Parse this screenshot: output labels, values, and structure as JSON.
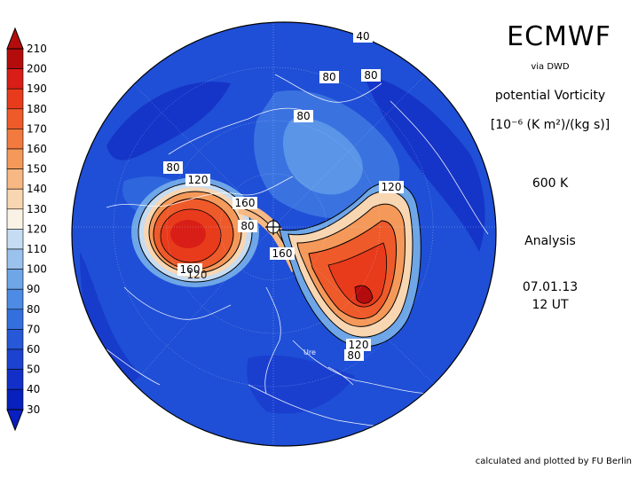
{
  "header": {
    "model": "ECMWF",
    "source": "via DWD",
    "quantity": "potential Vorticity",
    "units": "[10⁻⁶ (K m²)/(kg s)]",
    "level": "600 K",
    "type": "Analysis",
    "date": "07.01.13",
    "time": "12 UT"
  },
  "credit": "calculated and plotted by FU Berlin",
  "colorbar": {
    "levels": [
      "210",
      "200",
      "190",
      "180",
      "170",
      "160",
      "150",
      "140",
      "130",
      "120",
      "110",
      "100",
      "90",
      "80",
      "70",
      "60",
      "50",
      "40",
      "30"
    ],
    "colors": [
      "#b40c0c",
      "#d81e16",
      "#e83b1c",
      "#ee5a2a",
      "#f27a3e",
      "#f5995a",
      "#f7b883",
      "#f9d6b2",
      "#fbf2e6",
      "#c6dcf3",
      "#9ac2ec",
      "#6ea6e8",
      "#4d8be4",
      "#3370de",
      "#2658d8",
      "#1c42d0",
      "#1230c8",
      "#0820bd"
    ],
    "end_colors": {
      "top": "#b40c0c",
      "bottom": "#0a1fc0"
    }
  },
  "contour_labels": [
    "40",
    "80",
    "80",
    "80",
    "80",
    "120",
    "160",
    "80",
    "120",
    "160",
    "160",
    "120",
    "120",
    "80"
  ],
  "place_label": "Ure"
}
